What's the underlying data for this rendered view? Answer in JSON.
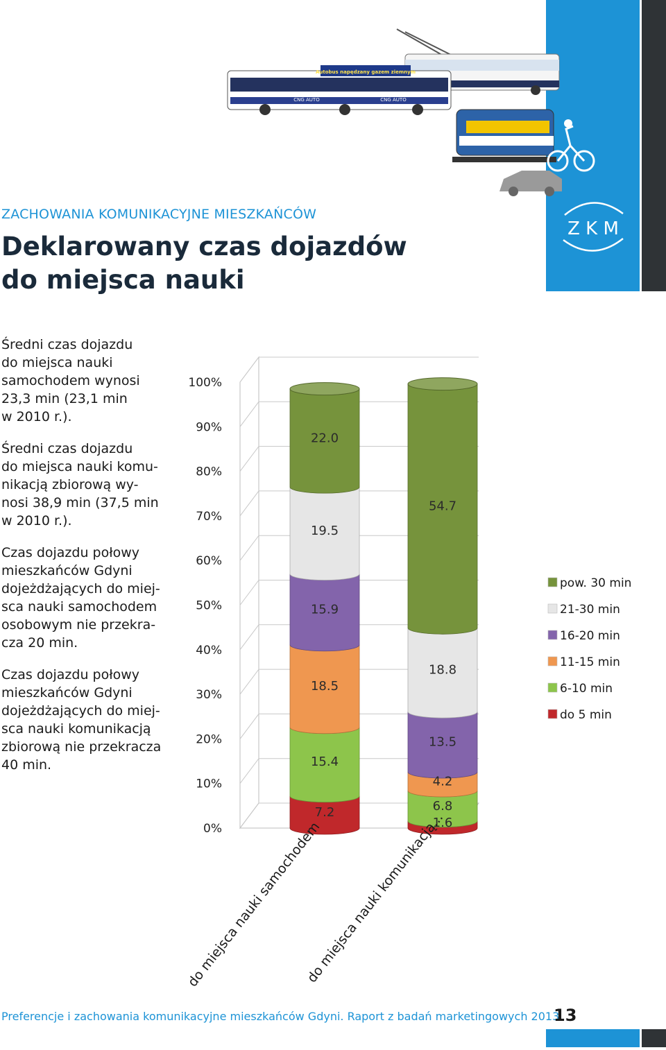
{
  "header": {
    "section": "ZACHOWANIA KOMUNIKACYJNE MIESZKAŃCÓW",
    "title_line1": "Deklarowany czas dojazdów",
    "title_line2": "do miejsca nauki",
    "logo_text": "Z K M"
  },
  "illustration": {
    "bus_banner": "Autobus napędzany gazem ziemnym",
    "bus_logo": "CNG AUTO"
  },
  "notes": [
    {
      "lines": [
        "Średni czas dojazdu",
        "do miejsca nauki",
        "samochodem wynosi",
        "23,3 min (23,1 min",
        "w 2010 r.)."
      ]
    },
    {
      "lines": [
        "Średni czas dojazdu",
        "do miejsca nauki komu-",
        "nikacją zbiorową wy-",
        "nosi 38,9 min (37,5 min",
        "w 2010 r.)."
      ]
    },
    {
      "lines": [
        "Czas dojazdu połowy",
        "mieszkańców Gdyni",
        "dojeżdżających do miej-",
        "sca nauki samochodem",
        "osobowym nie przekra-",
        "cza 20 min."
      ]
    },
    {
      "lines": [
        "Czas dojazdu połowy",
        "mieszkańców Gdyni",
        "dojeżdżających do miej-",
        "sca nauki komunikacją",
        "zbiorową nie przekracza",
        "40 min."
      ]
    }
  ],
  "chart_data": {
    "type": "bar",
    "stacked": true,
    "percent_axis": true,
    "categories": [
      "do miejsca nauki samochodem",
      "do miejsca nauki komunikacją..."
    ],
    "series": [
      {
        "name": "do 5 min",
        "color": "#c0282b",
        "values": [
          7.2,
          1.6
        ]
      },
      {
        "name": "6-10 min",
        "color": "#8dc54b",
        "values": [
          15.4,
          6.8
        ]
      },
      {
        "name": "11-15 min",
        "color": "#ef9750",
        "values": [
          18.5,
          4.2
        ]
      },
      {
        "name": "16-20 min",
        "color": "#8364ab",
        "values": [
          15.9,
          13.5
        ]
      },
      {
        "name": "21-30 min",
        "color": "#e6e6e6",
        "values": [
          19.5,
          18.8
        ]
      },
      {
        "name": "pow. 30 min",
        "color": "#76933c",
        "values": [
          22.0,
          54.7
        ]
      }
    ],
    "yticks": [
      "0%",
      "10%",
      "20%",
      "30%",
      "40%",
      "50%",
      "60%",
      "70%",
      "80%",
      "90%",
      "100%"
    ],
    "ylim": [
      0,
      100
    ],
    "legend_position": "right"
  },
  "footer": {
    "text": "Preferencje i zachowania komunikacyjne mieszkańców Gdyni. Raport z badań marketingowych 2013",
    "page": "13"
  }
}
